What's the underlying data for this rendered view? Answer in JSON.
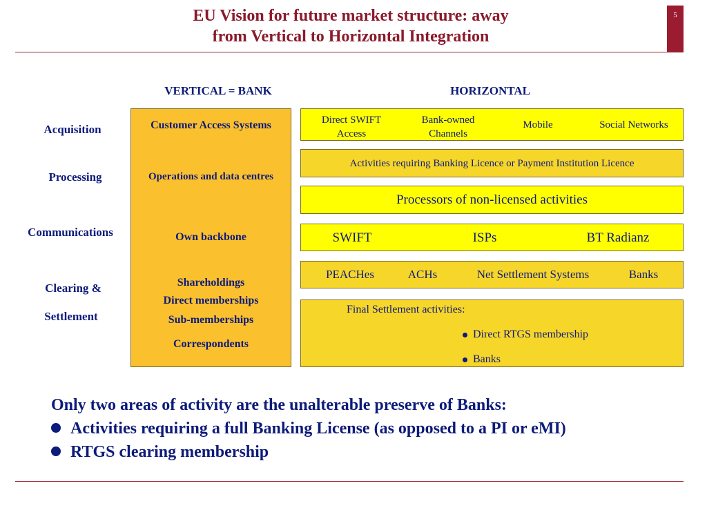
{
  "header": {
    "title_line1": "EU Vision for future market structure: away",
    "title_line2": "from Vertical to Horizontal  Integration",
    "page_number": "5"
  },
  "columns": {
    "vertical": "VERTICAL = BANK",
    "horizontal": "HORIZONTAL"
  },
  "rows": {
    "acquisition": "Acquisition",
    "processing": "Processing",
    "communications": "Communications",
    "clearing_1": "Clearing &",
    "clearing_2": "Settlement"
  },
  "vertical": {
    "customer_access": "Customer Access Systems",
    "operations": "Operations and data centres",
    "backbone": "Own backbone",
    "shareholdings": "Shareholdings",
    "direct_memberships": "Direct memberships",
    "sub_memberships": "Sub-memberships",
    "correspondents": "Correspondents"
  },
  "horizontal": {
    "acquisition": {
      "direct_swift_1": "Direct SWIFT",
      "direct_swift_2": "Access",
      "bank_owned_1": "Bank-owned",
      "bank_owned_2": "Channels",
      "mobile": "Mobile",
      "social": "Social Networks"
    },
    "licensed": "Activities requiring Banking Licence or Payment Institution Licence",
    "processors": "Processors of non-licensed activities",
    "comms": {
      "swift": "SWIFT",
      "isps": "ISPs",
      "bt": "BT Radianz"
    },
    "clearing": {
      "peaches": "PEACHes",
      "achs": "ACHs",
      "net": "Net Settlement Systems",
      "banks": "Banks"
    },
    "final": {
      "heading": "Final Settlement activities:",
      "bullet1": "Direct RTGS membership",
      "bullet2": "Banks"
    }
  },
  "summary": {
    "line1": "Only two areas of activity are the unalterable preserve of Banks:",
    "bullet1": "Activities requiring a full Banking License (as opposed to a PI or eMI)",
    "bullet2": "RTGS clearing membership"
  },
  "colors": {
    "title": "#8b1a2b",
    "text": "#0d1b7a",
    "vertical_box": "#fbc02d",
    "yellow_box": "#ffff00",
    "gold_box": "#f7d62a"
  }
}
